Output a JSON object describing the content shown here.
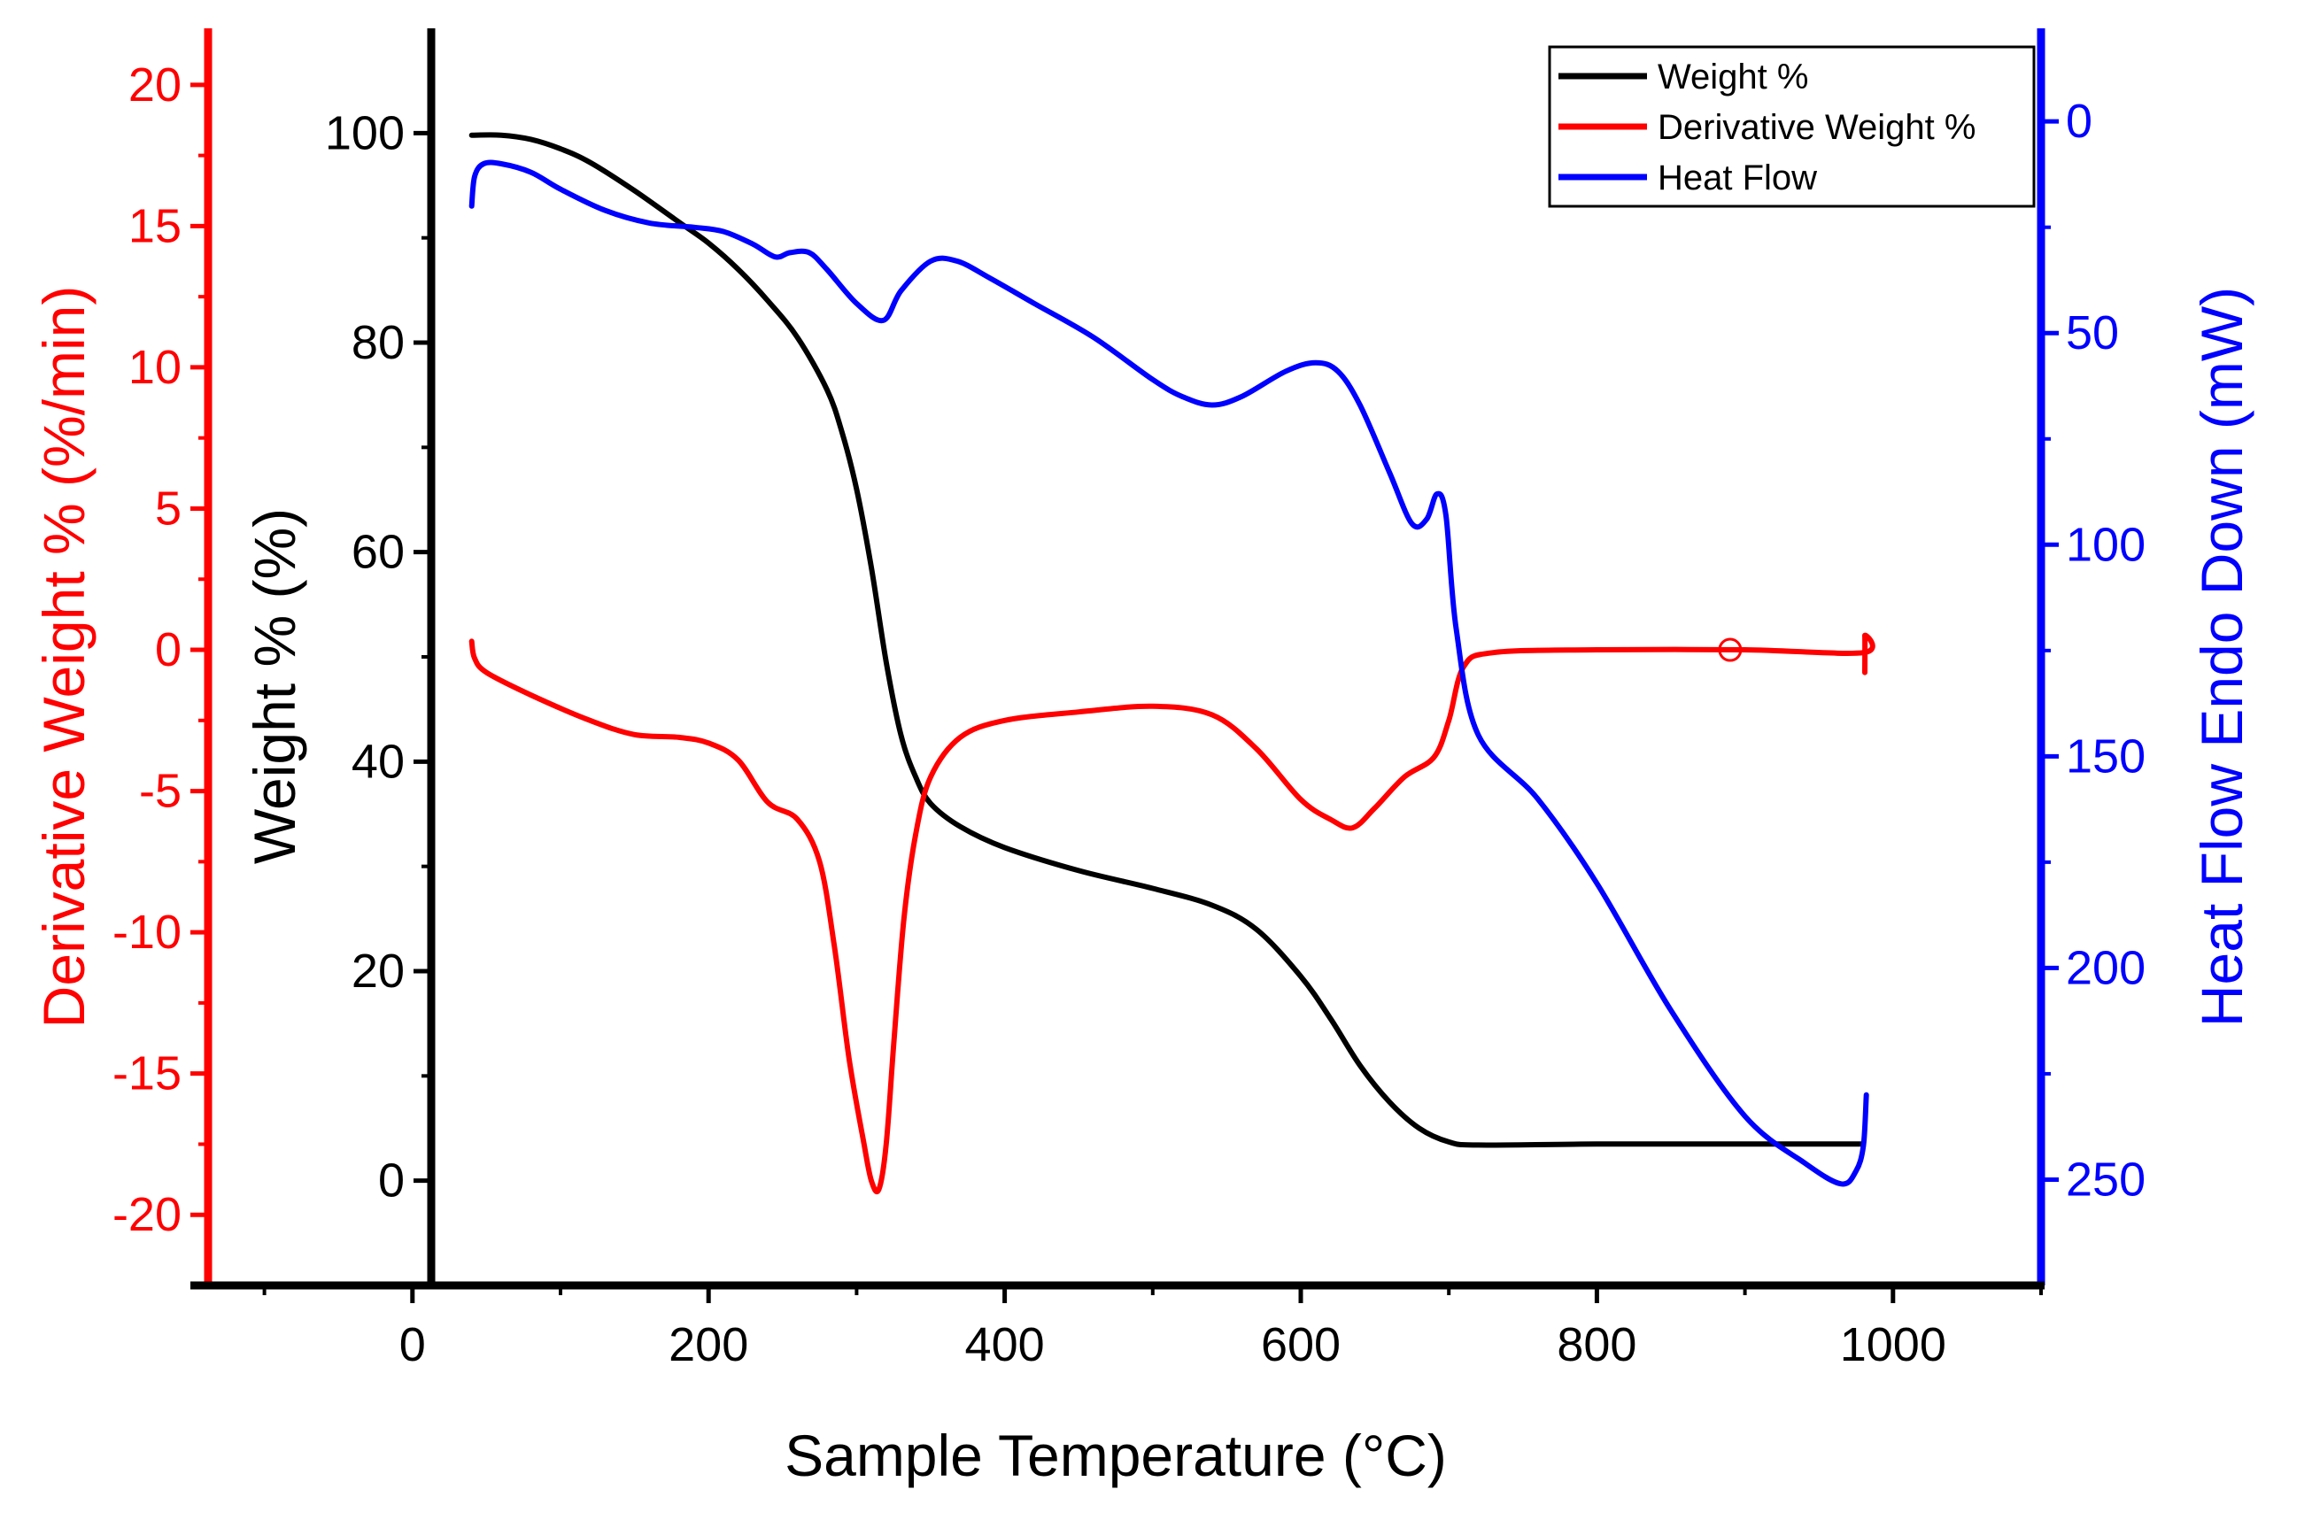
{
  "chart_data": {
    "type": "line",
    "title": "",
    "xlabel": "Sample Temperature (°C)",
    "xlim": [
      -150,
      1100
    ],
    "xticks": [
      0,
      200,
      400,
      600,
      800,
      1000
    ],
    "axes": {
      "weight": {
        "label": "Weight % (%)",
        "color": "#000000",
        "lim": [
          -10,
          110
        ],
        "ticks": [
          0,
          20,
          40,
          60,
          80,
          100
        ]
      },
      "derivative": {
        "label": "Derivative Weight % (%/min)",
        "color": "#ff0000",
        "lim": [
          -22.5,
          22
        ],
        "ticks": [
          -20,
          -15,
          -10,
          -5,
          0,
          5,
          10,
          15,
          20
        ]
      },
      "heat": {
        "label": "Heat Flow Endo Down (mW)",
        "color": "#0000ff",
        "lim": [
          275,
          -22
        ],
        "ticks": [
          0,
          50,
          100,
          150,
          200,
          250
        ]
      }
    },
    "legend": [
      "Weight %",
      "Derivative Weight %",
      "Heat Flow"
    ],
    "series": [
      {
        "name": "Weight %",
        "axis": "weight",
        "color": "#000000",
        "x": [
          40,
          60,
          80,
          100,
          120,
          150,
          180,
          200,
          220,
          240,
          260,
          280,
          290,
          300,
          310,
          320,
          330,
          340,
          350,
          370,
          400,
          450,
          500,
          540,
          570,
          600,
          620,
          640,
          660,
          680,
          700,
          720,
          800,
          900,
          980
        ],
        "y": [
          99.8,
          99.8,
          99.4,
          98.5,
          97.2,
          94.5,
          91.5,
          89.5,
          87,
          84,
          80.5,
          75.5,
          71.5,
          66,
          58.5,
          49.5,
          42.5,
          38.5,
          36,
          33.8,
          31.8,
          29.6,
          27.9,
          26.3,
          24,
          19.5,
          15.5,
          11,
          7.5,
          5,
          3.7,
          3.4,
          3.5,
          3.5,
          3.5
        ]
      },
      {
        "name": "Derivative Weight %",
        "axis": "derivative",
        "color": "#ff0000",
        "x": [
          40,
          42,
          50,
          80,
          120,
          150,
          180,
          200,
          220,
          240,
          260,
          275,
          285,
          295,
          305,
          310,
          315,
          320,
          325,
          332,
          340,
          350,
          370,
          400,
          450,
          500,
          540,
          570,
          600,
          620,
          635,
          650,
          670,
          690,
          700,
          710,
          730,
          800,
          900,
          980,
          981,
          981
        ],
        "y": [
          0.3,
          -0.3,
          -0.8,
          -1.6,
          -2.5,
          -3.0,
          -3.1,
          -3.3,
          -3.9,
          -5.4,
          -6.0,
          -7.5,
          -10.5,
          -14.5,
          -17.5,
          -18.8,
          -19.1,
          -17.5,
          -14.0,
          -9.5,
          -6.5,
          -4.5,
          -3.1,
          -2.5,
          -2.2,
          -2.0,
          -2.3,
          -3.5,
          -5.3,
          -6.0,
          -6.3,
          -5.6,
          -4.5,
          -3.8,
          -2.5,
          -0.6,
          -0.1,
          0.0,
          0.0,
          -0.1,
          0.5,
          -0.8
        ]
      },
      {
        "name": "Heat Flow",
        "axis": "heat",
        "color": "#0000ff",
        "x": [
          40,
          42,
          48,
          60,
          80,
          100,
          130,
          160,
          190,
          210,
          230,
          245,
          255,
          268,
          280,
          300,
          318,
          330,
          350,
          368,
          390,
          420,
          460,
          500,
          520,
          540,
          560,
          590,
          610,
          625,
          640,
          660,
          675,
          685,
          692,
          698,
          705,
          720,
          760,
          800,
          850,
          900,
          940,
          965,
          975,
          980,
          982
        ],
        "y": [
          20,
          13,
          10,
          10,
          12,
          16,
          21,
          24,
          25,
          26,
          29,
          32,
          31,
          31,
          35,
          43,
          47,
          40,
          33,
          33,
          37,
          43,
          51,
          61,
          65,
          67,
          65,
          59,
          57,
          59,
          67,
          83,
          95,
          94,
          88,
          93,
          120,
          145,
          160,
          180,
          210,
          235,
          246,
          251,
          248,
          242,
          230
        ]
      }
    ],
    "annotations": [
      {
        "type": "marker",
        "series": "Derivative Weight %",
        "shape": "open-circle",
        "x": 890,
        "y": 0
      }
    ]
  }
}
